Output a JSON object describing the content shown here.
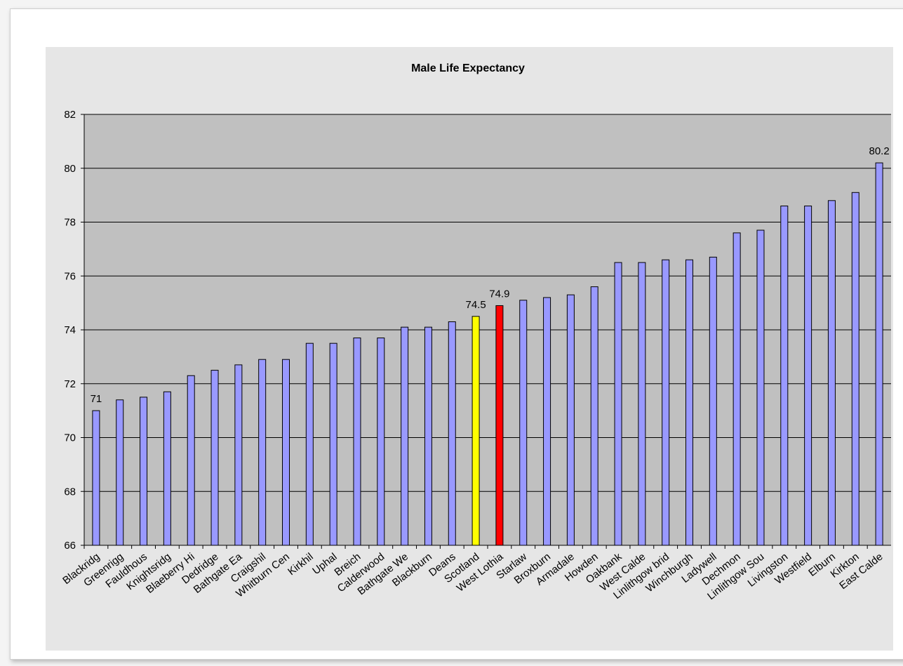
{
  "chart_data": {
    "type": "bar",
    "title": "Male Life Expectancy",
    "xlabel": "",
    "ylabel": "",
    "ylim": [
      66,
      82
    ],
    "yticks": [
      66,
      68,
      70,
      72,
      74,
      76,
      78,
      80,
      82
    ],
    "grid": true,
    "legend": "none",
    "categories": [
      "Blackridg",
      "Greenrigg",
      "Fauldhouse",
      "Knightsridge",
      "Blaeberry Hill",
      "Dedridge",
      "Bathgate East",
      "Craigshill",
      "Whitburn Centre",
      "Kirkhill",
      "Uphall",
      "Breich",
      "Calderwood",
      "Bathgate West",
      "Blackburn",
      "Deans",
      "Scotland",
      "West Lothian",
      "Starlaw",
      "Broxburn",
      "Armadale",
      "Howden",
      "Oakbank",
      "West Calder",
      "Linlithgow Bridge",
      "Winchburgh",
      "Ladywell",
      "Dechmont",
      "Linlithgow South",
      "Livingston",
      "Westfield",
      "Ellburn",
      "Kirkton",
      "East Calder"
    ],
    "category_labels": [
      "Blackridg",
      "Greenrigg",
      "Fauldhous",
      "Knightsridg",
      "Blaeberry Hi",
      "Dedridge",
      "Bathgate Ea",
      "Craigshil",
      "Whitburn Cen",
      "Kirkhil",
      "Uphal",
      "Breich",
      "Calderwood",
      "Bathgate We",
      "Blackburn",
      "Deans",
      "Scotland",
      "West Lothia",
      "Starlaw",
      "Broxburn",
      "Armadale",
      "Howden",
      "Oakbank",
      "West Calde",
      "Linlithgow brid",
      "Winchburgh",
      "Ladywell",
      "Dechmon",
      "Linlithgow Sou",
      "Livingston",
      "Westfield",
      "Elburn",
      "Kirkton",
      "East Calde"
    ],
    "values": [
      71.0,
      71.4,
      71.5,
      71.7,
      72.3,
      72.5,
      72.7,
      72.9,
      72.9,
      73.5,
      73.5,
      73.7,
      73.7,
      74.1,
      74.1,
      74.3,
      74.5,
      74.9,
      75.1,
      75.2,
      75.3,
      75.6,
      76.5,
      76.5,
      76.6,
      76.6,
      76.7,
      77.6,
      77.7,
      78.6,
      78.6,
      78.8,
      79.1,
      80.2
    ],
    "bar_colors": {
      "default": "#9999ff",
      "Scotland": "#ffff00",
      "West Lothian": "#ff0000"
    },
    "data_labels": [
      {
        "index": 0,
        "text": "71"
      },
      {
        "index": 16,
        "text": "74.5"
      },
      {
        "index": 17,
        "text": "74.9"
      },
      {
        "index": 33,
        "text": "80.2"
      }
    ],
    "plot_background": "#c0c0c0",
    "outer_background": "#e6e6e6"
  }
}
